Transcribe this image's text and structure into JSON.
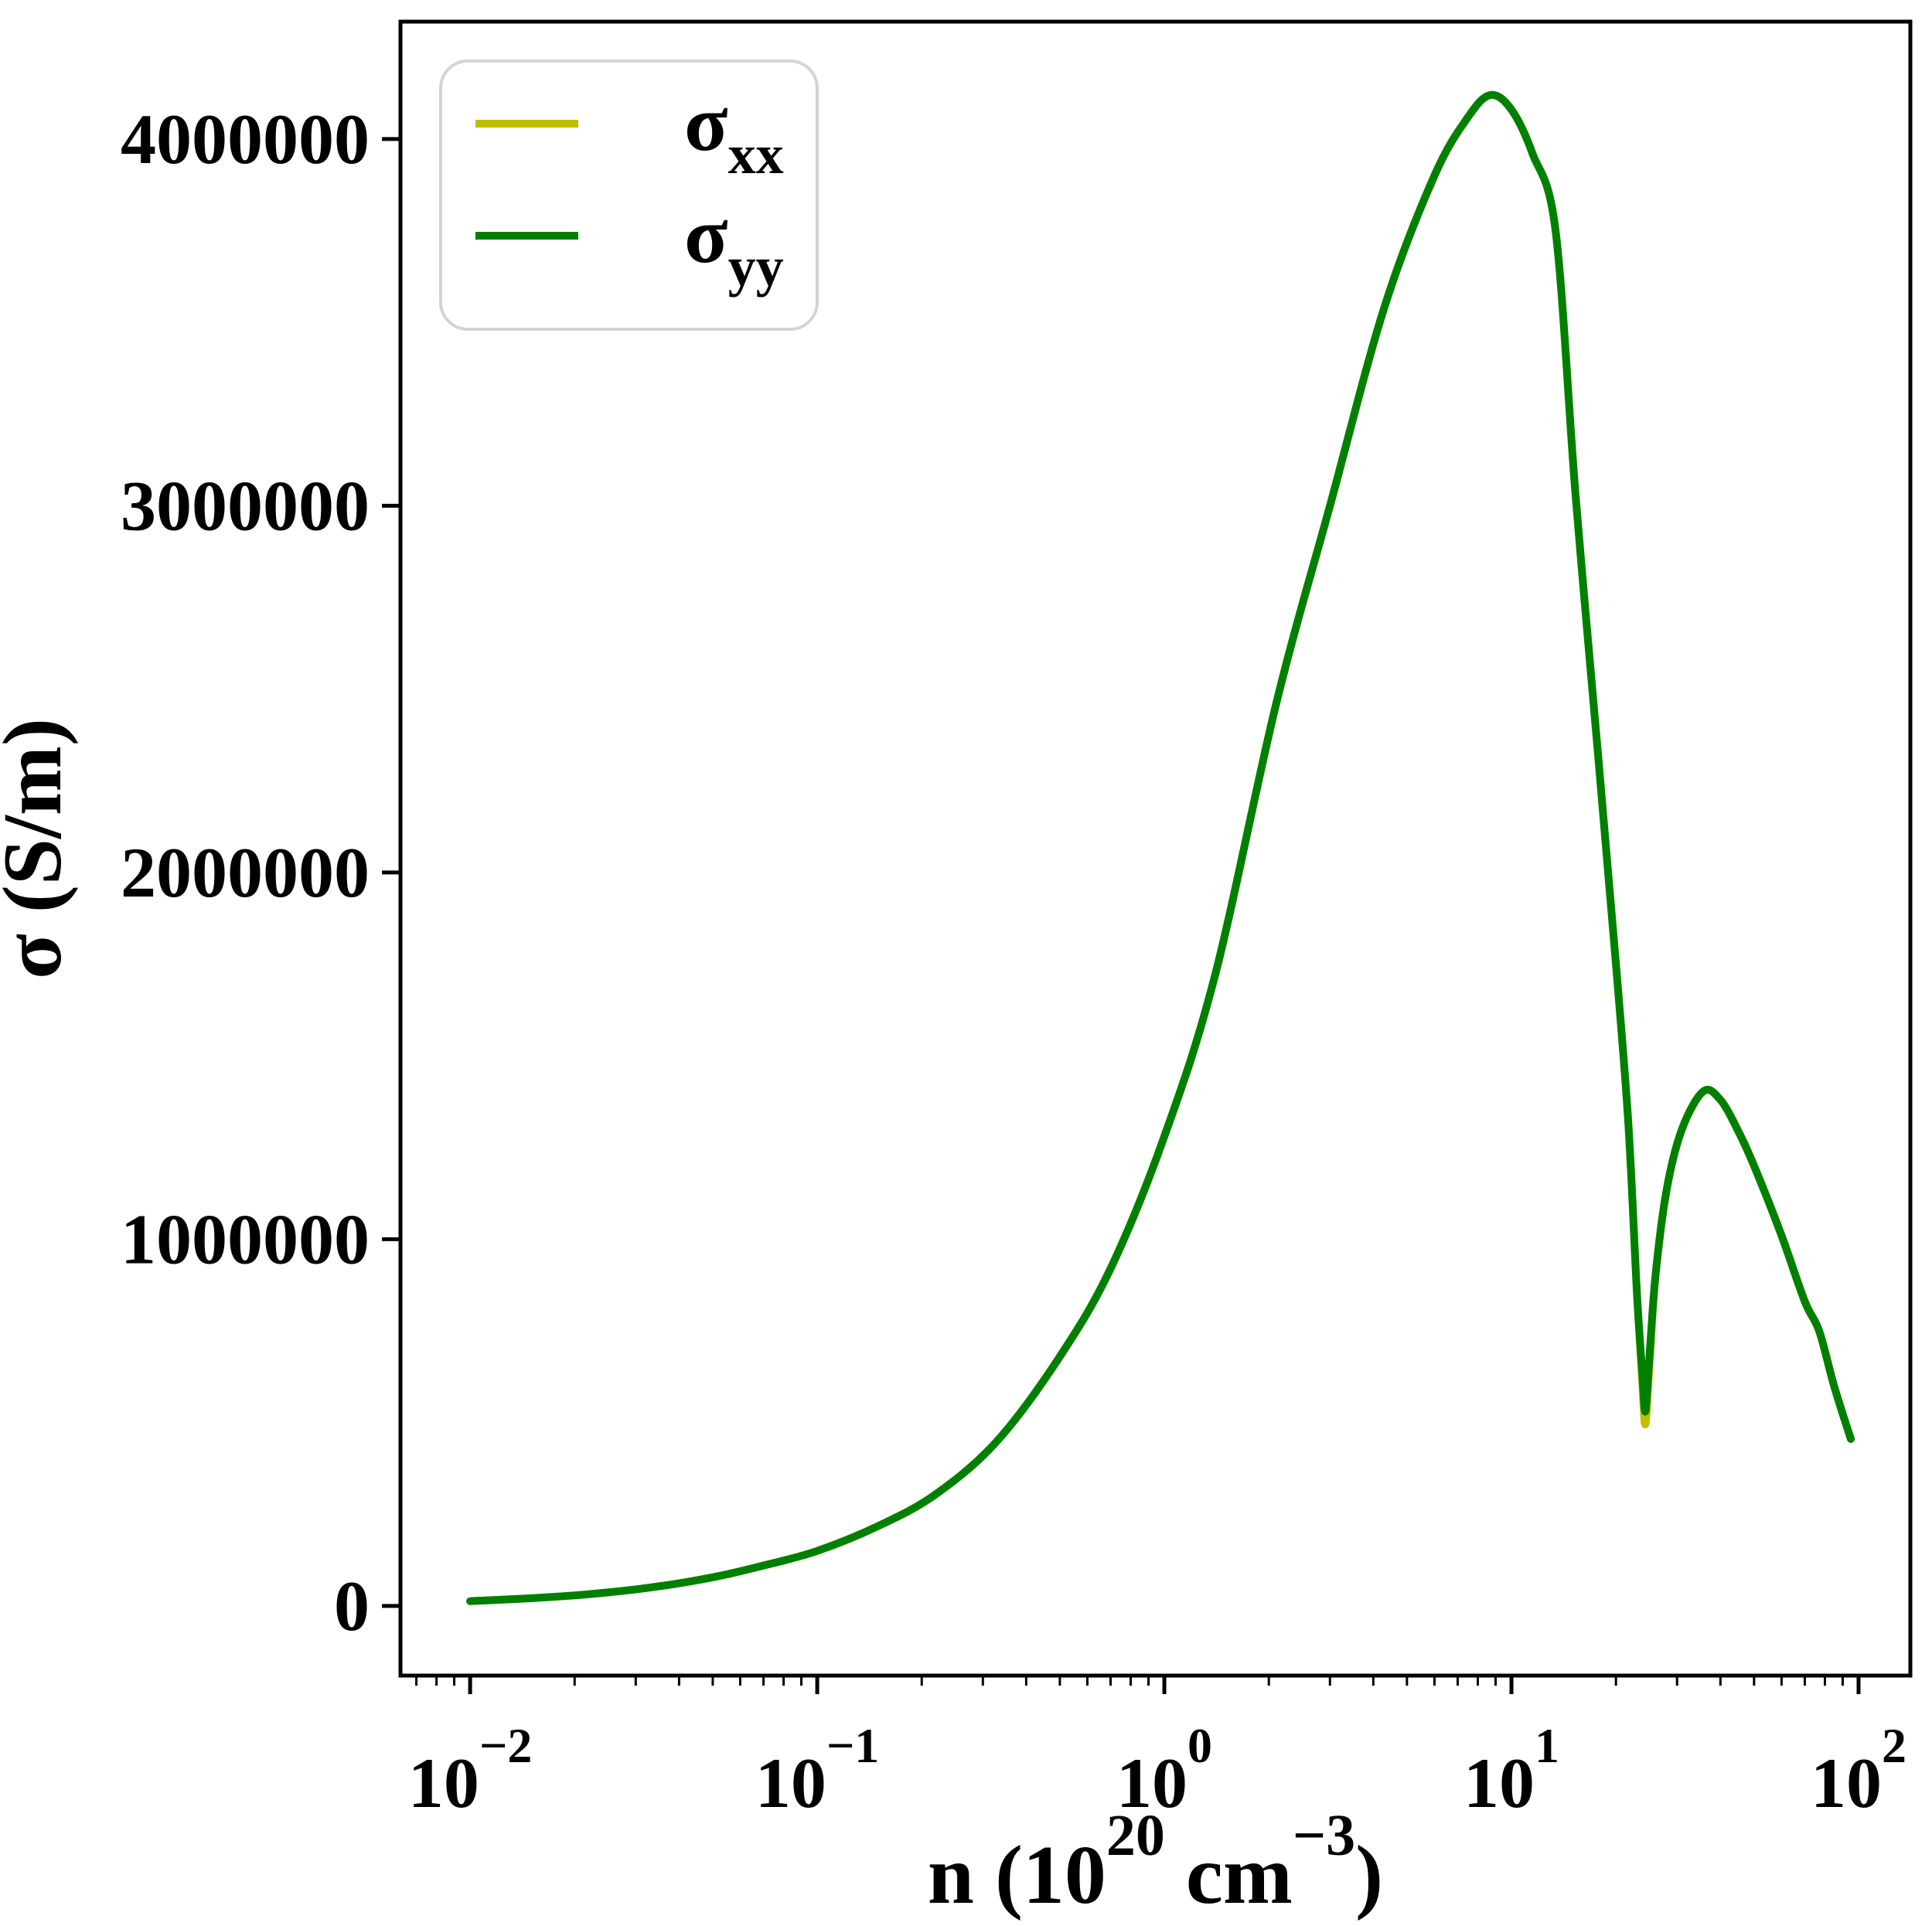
{
  "figure": {
    "background": "#ffffff",
    "frame_color": "#000000",
    "tick_color": "#000000",
    "legend_border_color": "#d3d3d3",
    "legend_background": "#ffffff"
  },
  "chart_data": {
    "type": "line",
    "title": "",
    "x_scale": "log",
    "y_scale": "linear",
    "grid": false,
    "xlabel": {
      "base": "n (10",
      "sup1": "20",
      "mid": " cm",
      "sup2": "−3",
      "close": ")"
    },
    "ylabel": "σ (S/m)",
    "xlim": [
      0.0063,
      141.0
    ],
    "ylim": [
      -190000,
      4320000
    ],
    "x_ticks": [
      {
        "value": 0.01,
        "base": "10",
        "exponent": "−2"
      },
      {
        "value": 0.1,
        "base": "10",
        "exponent": "−1"
      },
      {
        "value": 1,
        "base": "10",
        "exponent": "0"
      },
      {
        "value": 10,
        "base": "10",
        "exponent": "1"
      },
      {
        "value": 100,
        "base": "10",
        "exponent": "2"
      }
    ],
    "y_ticks": [
      {
        "value": 0,
        "label": "0"
      },
      {
        "value": 1000000,
        "label": "1000000"
      },
      {
        "value": 2000000,
        "label": "2000000"
      },
      {
        "value": 3000000,
        "label": "3000000"
      },
      {
        "value": 4000000,
        "label": "4000000"
      }
    ],
    "legend": {
      "position": "upper left",
      "entries": [
        {
          "symbol": "σ",
          "subscript": "xx",
          "color": "#bfbf00"
        },
        {
          "symbol": "σ",
          "subscript": "yy",
          "color": "#008000"
        }
      ]
    },
    "line_width": 10,
    "x_shared": [
      0.01,
      0.015,
      0.022,
      0.033,
      0.05,
      0.07,
      0.1,
      0.15,
      0.22,
      0.33,
      0.5,
      0.7,
      1.0,
      1.4,
      2.1,
      3.0,
      4.3,
      6.0,
      7.5,
      8.7,
      10,
      11.5,
      13.4,
      15.3,
      17.8,
      20,
      21.7,
      23,
      23.8,
      24.3,
      24.9,
      26,
      28,
      31,
      35.7,
      40,
      45,
      50,
      60,
      70,
      77,
      85,
      95
    ],
    "series": [
      {
        "name": "sigma_xx",
        "color": "#bfbf00",
        "y": [
          13000,
          21000,
          32000,
          50000,
          78000,
          110000,
          150000,
          218000,
          305000,
          450000,
          680000,
          920000,
          1280000,
          1720000,
          2460000,
          3000000,
          3540000,
          3900000,
          4060000,
          4120000,
          4080000,
          3960000,
          3750000,
          3030000,
          2310000,
          1750000,
          1320000,
          850000,
          610000,
          495000,
          630000,
          900000,
          1135000,
          1300000,
          1403000,
          1380000,
          1295000,
          1200000,
          1010000,
          830000,
          750000,
          600000,
          455000
        ]
      },
      {
        "name": "sigma_yy",
        "color": "#008000",
        "y": [
          13000,
          21000,
          32000,
          50000,
          78000,
          110000,
          150000,
          218000,
          305000,
          450000,
          680000,
          920000,
          1280000,
          1720000,
          2460000,
          3000000,
          3540000,
          3900000,
          4060000,
          4120000,
          4080000,
          3960000,
          3750000,
          3030000,
          2310000,
          1750000,
          1320000,
          850000,
          640000,
          530000,
          660000,
          900000,
          1135000,
          1300000,
          1403000,
          1380000,
          1295000,
          1200000,
          1010000,
          830000,
          750000,
          600000,
          455000
        ]
      }
    ],
    "annotations": {
      "peak": {
        "n": 8.7,
        "sigma": 4120000
      },
      "dip": {
        "n": 24.3,
        "sigma_yy": 530000,
        "sigma_xx": 495000
      },
      "second_max": {
        "n": 35.7,
        "sigma": 1403000
      }
    }
  }
}
